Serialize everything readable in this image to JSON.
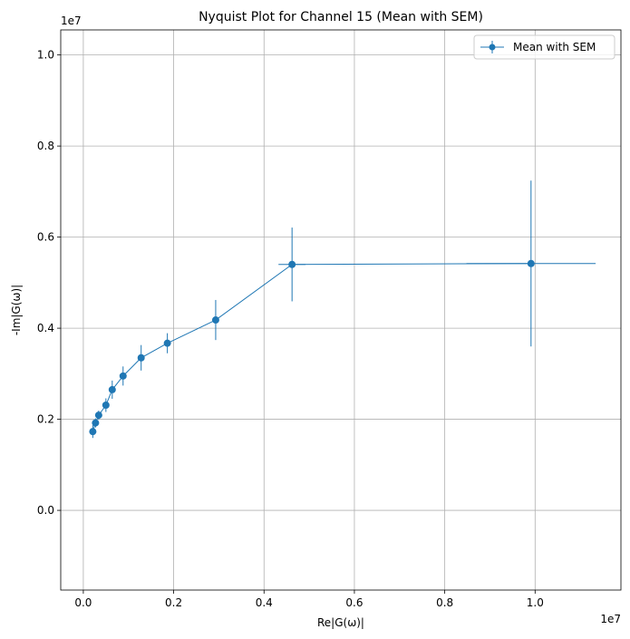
{
  "chart_data": {
    "type": "line",
    "title": "Nyquist Plot for Channel 15 (Mean with SEM)",
    "xlabel": "Re|G(ω)|",
    "ylabel": "-Im|G(ω)|",
    "x_offset_label": "1e7",
    "y_offset_label": "1e7",
    "xlim": [
      -0.05,
      1.19
    ],
    "ylim": [
      -0.175,
      1.055
    ],
    "x_ticks": [
      0.0,
      0.2,
      0.4,
      0.6,
      0.8,
      1.0
    ],
    "x_tick_labels": [
      "0.0",
      "0.2",
      "0.4",
      "0.6",
      "0.8",
      "1.0"
    ],
    "y_ticks": [
      0.0,
      0.2,
      0.4,
      0.6,
      0.8,
      1.0
    ],
    "y_tick_labels": [
      "0.0",
      "0.2",
      "0.4",
      "0.6",
      "0.8",
      "1.0"
    ],
    "grid": true,
    "legend_position": "top-right",
    "series": [
      {
        "name": "Mean with SEM",
        "color": "#1f77b4",
        "x": [
          0.021,
          0.027,
          0.034,
          0.05,
          0.064,
          0.088,
          0.128,
          0.186,
          0.293,
          0.462,
          0.991
        ],
        "y": [
          0.173,
          0.192,
          0.209,
          0.231,
          0.265,
          0.295,
          0.335,
          0.367,
          0.418,
          0.54,
          0.542
        ],
        "yerr": [
          0.014,
          0.01,
          0.01,
          0.015,
          0.02,
          0.021,
          0.028,
          0.022,
          0.044,
          0.081,
          0.182
        ],
        "xerr": [
          0.0,
          0.0,
          0.0,
          0.0,
          0.0,
          0.0,
          0.0,
          0.0,
          0.0,
          0.03,
          0.143
        ]
      }
    ]
  }
}
